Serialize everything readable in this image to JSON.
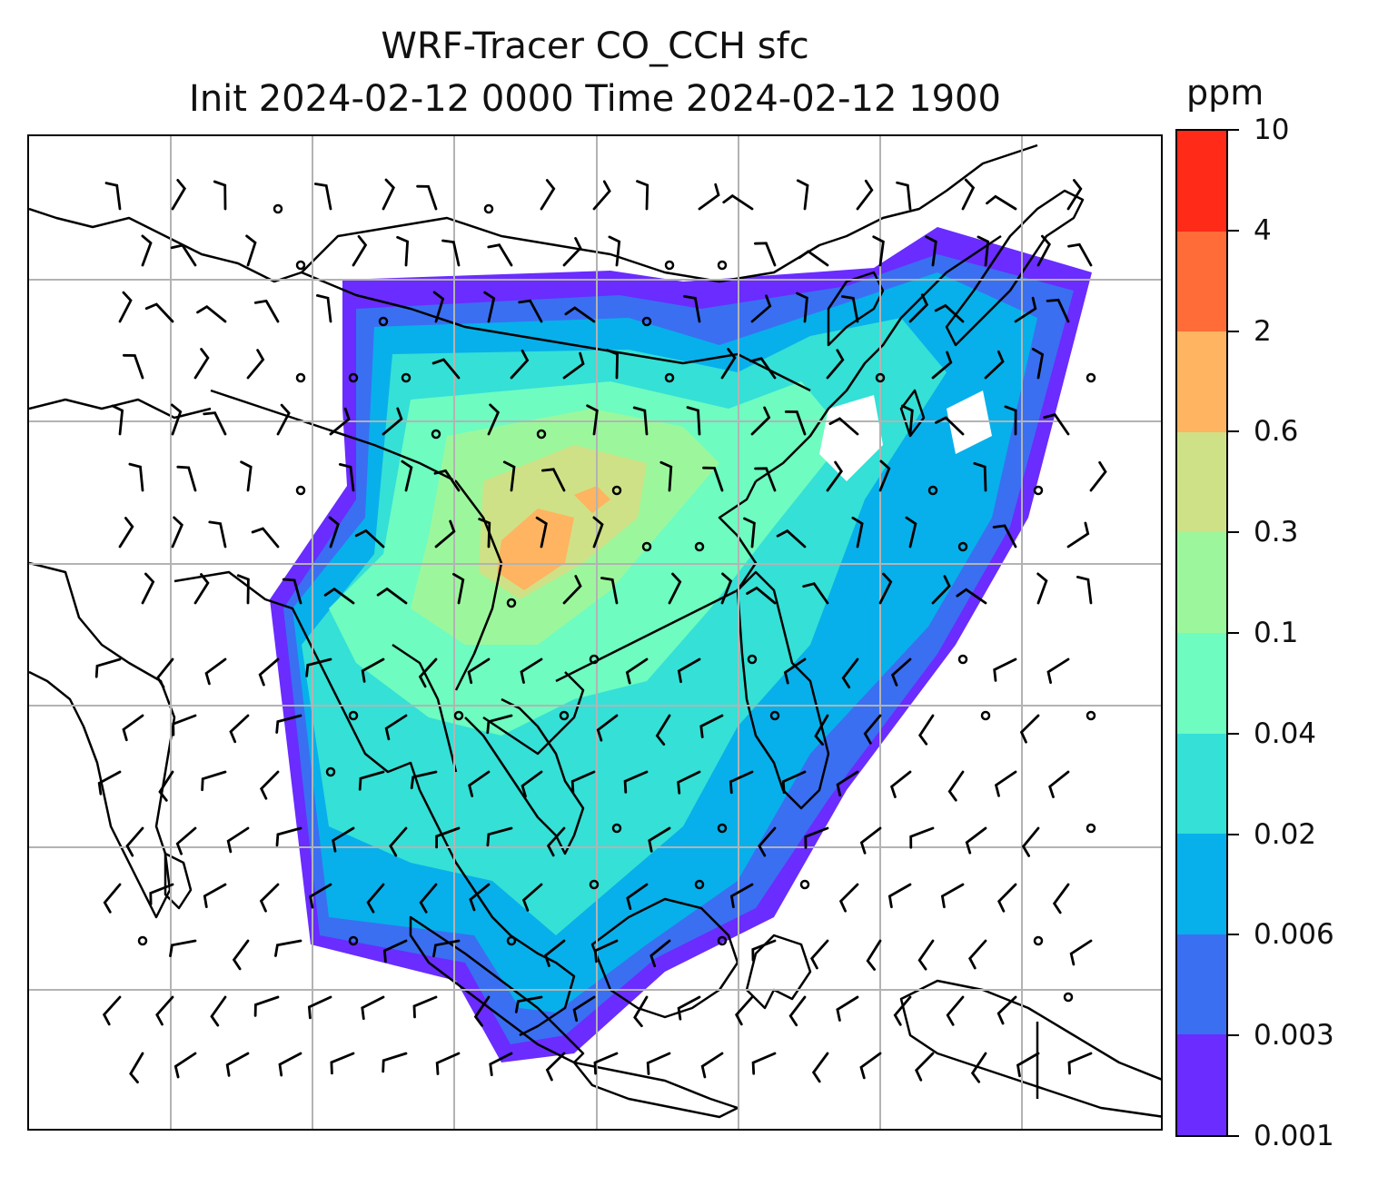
{
  "title": {
    "line1": "WRF-Tracer CO_CCH sfc",
    "line2": "Init 2024-02-12 0000 Time 2024-02-12 1900"
  },
  "colorbar": {
    "unit": "ppm",
    "tick_labels": [
      "10",
      "4",
      "2",
      "0.6",
      "0.3",
      "0.1",
      "0.04",
      "0.02",
      "0.006",
      "0.003",
      "0.001"
    ],
    "colors_bottom_to_top": [
      "#6a2cff",
      "#3a6ff2",
      "#07b0ea",
      "#35e0d6",
      "#6efcc0",
      "#9cf79c",
      "#cfe186",
      "#feb460",
      "#ff6c38",
      "#ff2a18"
    ]
  },
  "map": {
    "gridlines": "on",
    "wind_barbs": "on",
    "calm_marker": "circle"
  }
}
